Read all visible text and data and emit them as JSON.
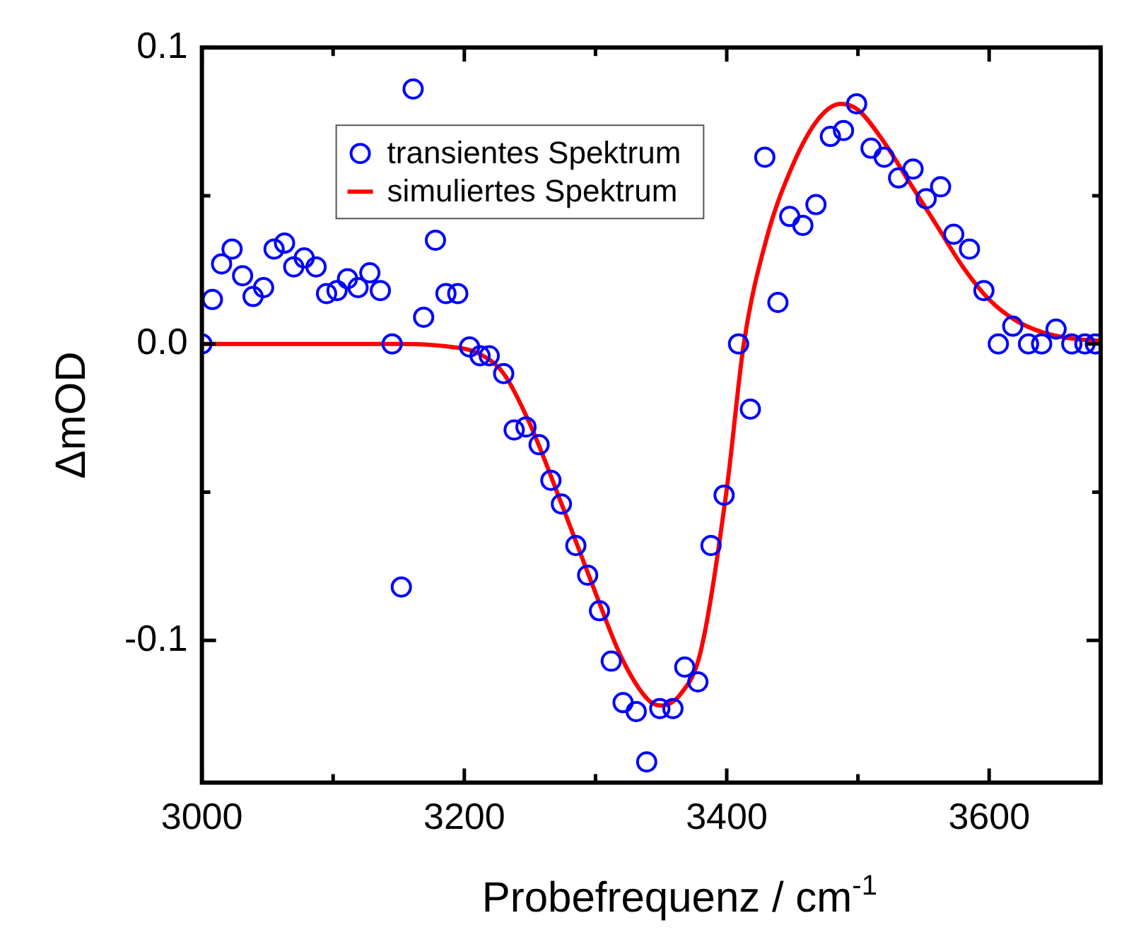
{
  "chart_data": {
    "type": "scatter",
    "xlabel": "Probefrequenz / cm$^{-1}$",
    "ylabel": "ΔmOD",
    "xlim": [
      3000,
      3685
    ],
    "ylim": [
      -0.148,
      0.1
    ],
    "xticks": [
      3000,
      {
        "value": 3100,
        "label": null
      },
      3200,
      {
        "value": 3300,
        "label": null
      },
      3400,
      {
        "value": 3500,
        "label": null
      },
      3600
    ],
    "yticks": [
      {
        "value": -0.1,
        "label": "-0.1"
      },
      {
        "value": -0.05,
        "label": null
      },
      {
        "value": 0,
        "label": "0.0"
      },
      {
        "value": 0.05,
        "label": null
      },
      0.1
    ],
    "grid": false,
    "legend": "top left",
    "marker": "circle",
    "series": [
      {
        "name": "transientes Spektrum",
        "type": "scatter",
        "color": "#0000ff",
        "x": [
          3000,
          3008,
          3015,
          3023,
          3031,
          3039,
          3047,
          3055,
          3063,
          3070,
          3078,
          3087,
          3095,
          3103,
          3111,
          3119,
          3128,
          3136,
          3145,
          3152,
          3161,
          3169,
          3178,
          3186,
          3195,
          3204,
          3212,
          3219,
          3230,
          3238,
          3247,
          3257,
          3266,
          3274,
          3285,
          3294,
          3303,
          3312,
          3321,
          3331,
          3339,
          3349,
          3359,
          3368,
          3378,
          3388,
          3398,
          3409,
          3418,
          3429,
          3439,
          3448,
          3458,
          3468,
          3479,
          3489,
          3499,
          3510,
          3520,
          3531,
          3542,
          3552,
          3563,
          3573,
          3585,
          3596,
          3607,
          3618,
          3630,
          3640,
          3651,
          3663,
          3673,
          3681
        ],
        "values": [
          0,
          0.015,
          0.027,
          0.032,
          0.023,
          0.016,
          0.019,
          0.032,
          0.034,
          0.026,
          0.029,
          0.026,
          0.017,
          0.018,
          0.022,
          0.019,
          0.024,
          0.018,
          0,
          -0.082,
          0.086,
          0.009,
          0.035,
          0.017,
          0.017,
          -0.001,
          -0.004,
          -0.004,
          -0.01,
          -0.029,
          -0.028,
          -0.034,
          -0.046,
          -0.054,
          -0.068,
          -0.078,
          -0.09,
          -0.107,
          -0.121,
          -0.124,
          -0.141,
          -0.123,
          -0.123,
          -0.109,
          -0.114,
          -0.068,
          -0.051,
          0,
          -0.022,
          0.063,
          0.014,
          0.043,
          0.04,
          0.047,
          0.07,
          0.072,
          0.081,
          0.066,
          0.063,
          0.056,
          0.059,
          0.049,
          0.053,
          0.037,
          0.032,
          0.018,
          0,
          0.006,
          0,
          0,
          0.005,
          0,
          0,
          0
        ]
      },
      {
        "name": "simuliertes Spektrum",
        "type": "line",
        "color": "#ff0000",
        "marker": "none",
        "line_style": "solid",
        "x": [
          3000,
          3150,
          3190,
          3210,
          3230,
          3250,
          3275,
          3300,
          3320,
          3340,
          3350,
          3365,
          3380,
          3400,
          3413,
          3430,
          3450,
          3470,
          3487,
          3500,
          3520,
          3540,
          3560,
          3580,
          3600,
          3620,
          3640,
          3660,
          3685
        ],
        "values": [
          0,
          0,
          -0.001,
          -0.003,
          -0.01,
          -0.027,
          -0.055,
          -0.084,
          -0.106,
          -0.12,
          -0.122,
          -0.118,
          -0.104,
          -0.049,
          0,
          0.035,
          0.06,
          0.076,
          0.081,
          0.079,
          0.068,
          0.054,
          0.04,
          0.026,
          0.015,
          0.008,
          0.004,
          0.002,
          0.001
        ]
      }
    ]
  }
}
